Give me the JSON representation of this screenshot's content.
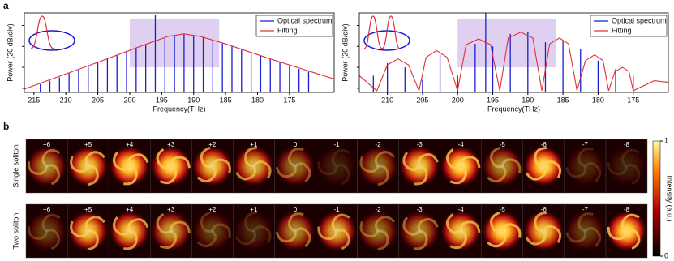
{
  "panel_labels": [
    "a",
    "b"
  ],
  "chart_data": [
    {
      "type": "line",
      "xlabel": "Frequency(THz)",
      "ylabel": "Power (20 dB/div)",
      "xlim": [
        216.5,
        168
      ],
      "xticks": [
        215,
        210,
        205,
        200,
        195,
        190,
        185,
        180,
        175
      ],
      "ylim": [
        0,
        95
      ],
      "yticks": [
        5,
        30,
        55,
        80
      ],
      "highlight": [
        200,
        186
      ],
      "legend": "upper right",
      "series": [
        {
          "name": "Optical spectrum",
          "color": "#1c1cd4",
          "mode": "stem",
          "x": [
            214,
            212.5,
            211,
            209.5,
            208,
            206.5,
            205,
            203.5,
            202,
            200.5,
            199,
            197.5,
            196,
            194.5,
            193,
            191.5,
            190,
            188.5,
            187,
            185.5,
            184,
            182.5,
            181,
            179.5,
            178,
            176.5,
            175,
            173.5,
            172
          ],
          "values": [
            10,
            14,
            18,
            23,
            27,
            32,
            36,
            40,
            45,
            49,
            53,
            57,
            92,
            66,
            68,
            70,
            68,
            66,
            62,
            59,
            55,
            51,
            47,
            44,
            40,
            36,
            32,
            28,
            25
          ]
        },
        {
          "name": "Fitting",
          "color": "#e0303a",
          "mode": "line",
          "x": [
            216.5,
            205,
            198,
            194,
            191.5,
            189,
            185,
            178,
            168
          ],
          "values": [
            4,
            36,
            56,
            67,
            70,
            67,
            58,
            40,
            16
          ]
        }
      ]
    },
    {
      "type": "line",
      "xlabel": "Frequency(THz)",
      "ylabel": "Power (20 dB/div)",
      "xlim": [
        214,
        170
      ],
      "xticks": [
        210,
        205,
        200,
        195,
        190,
        185,
        180,
        175
      ],
      "ylim": [
        0,
        95
      ],
      "yticks": [
        5,
        30,
        55,
        80
      ],
      "highlight": [
        200,
        186
      ],
      "legend": "upper right",
      "series": [
        {
          "name": "Optical spectrum",
          "color": "#1c1cd4",
          "mode": "stem",
          "x": [
            212,
            210,
            207.5,
            205,
            202.5,
            200,
            197.5,
            196,
            195,
            192.5,
            190,
            187.5,
            185,
            182.5,
            180,
            177.5,
            175
          ],
          "values": [
            20,
            35,
            30,
            15,
            45,
            20,
            58,
            95,
            55,
            70,
            72,
            60,
            62,
            52,
            38,
            28,
            20
          ]
        },
        {
          "name": "Fitting",
          "color": "#e0303a",
          "mode": "line",
          "x": [
            214,
            211.5,
            210,
            208.5,
            207,
            205.5,
            204.5,
            203,
            201.5,
            200,
            198.8,
            197,
            195.3,
            194,
            192.8,
            191,
            189.3,
            188,
            186.9,
            185.5,
            184.2,
            183,
            181.8,
            180.5,
            179.3,
            178.5,
            177.6,
            176.5,
            175.6,
            175,
            172,
            170
          ],
          "values": [
            20,
            2,
            33,
            40,
            33,
            2,
            42,
            50,
            42,
            2,
            57,
            64,
            57,
            2,
            65,
            72,
            65,
            2,
            58,
            65,
            58,
            2,
            38,
            45,
            38,
            2,
            25,
            30,
            25,
            2,
            14,
            12
          ]
        }
      ]
    }
  ],
  "panel_b": {
    "rows": [
      {
        "name": "Single soliton",
        "orders": [
          "+6",
          "+5",
          "+4",
          "+3",
          "+2",
          "+1",
          "0",
          "-1",
          "-2",
          "-3",
          "-4",
          "-5",
          "-6",
          "-7",
          "-8"
        ]
      },
      {
        "name": "Two soliton",
        "orders": [
          "+6",
          "+5",
          "+4",
          "+3",
          "+2",
          "+1",
          "0",
          "-1",
          "-2",
          "-3",
          "-4",
          "-5",
          "-6",
          "-7",
          "-8"
        ]
      }
    ],
    "colorbar": {
      "label": "Intensity (a.u.)",
      "ticks": [
        0,
        1
      ]
    }
  }
}
